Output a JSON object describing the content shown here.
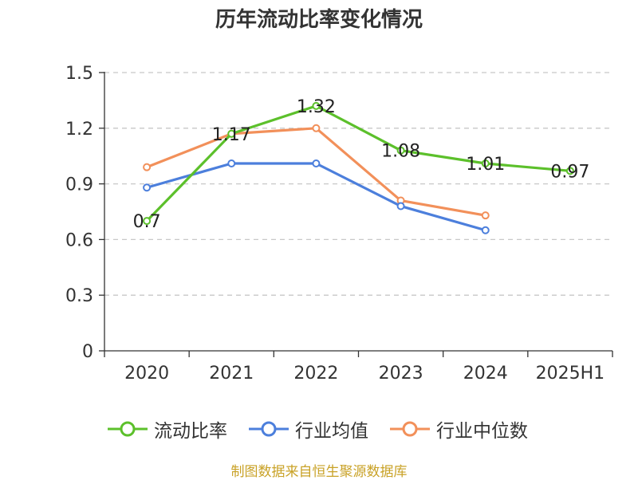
{
  "chart_data": {
    "type": "line",
    "title": "历年流动比率变化情况",
    "categories": [
      "2020",
      "2021",
      "2022",
      "2023",
      "2024",
      "2025H1"
    ],
    "ylim": [
      0,
      1.5
    ],
    "yticks": [
      "0",
      "0.3",
      "0.6",
      "0.9",
      "1.2",
      "1.5"
    ],
    "ytick_values": [
      0,
      0.3,
      0.6,
      0.9,
      1.2,
      1.5
    ],
    "grid": true,
    "legend_position": "bottom",
    "series": [
      {
        "name": "流动比率",
        "color": "#5cc02b",
        "values": [
          0.7,
          1.17,
          1.32,
          1.08,
          1.01,
          0.97
        ],
        "labels": [
          "0.7",
          "1.17",
          "1.32",
          "1.08",
          "1.01",
          "0.97"
        ]
      },
      {
        "name": "行业均值",
        "color": "#4c7fdc",
        "values": [
          0.88,
          1.01,
          1.01,
          0.78,
          0.65,
          null
        ]
      },
      {
        "name": "行业中位数",
        "color": "#f2905a",
        "values": [
          0.99,
          1.17,
          1.2,
          0.81,
          0.73,
          null
        ]
      }
    ]
  },
  "footer": {
    "source": "制图数据来自恒生聚源数据库"
  }
}
